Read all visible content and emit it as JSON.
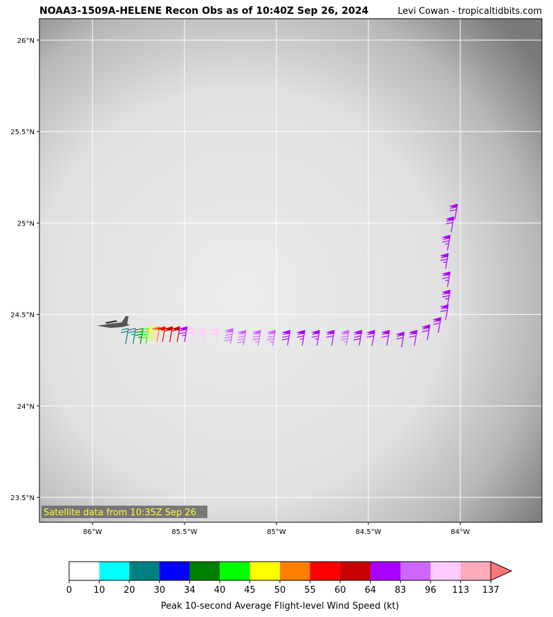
{
  "title": "NOAA3-1509A-HELENE Recon Obs as of 10:40Z Sep 26, 2024",
  "credit": "Levi Cowan - tropicaltidbits.com",
  "map": {
    "xlim": [
      -86.289,
      -83.556
    ],
    "ylim": [
      23.364,
      26.117
    ],
    "xticks": [
      {
        "value": -86,
        "label": "86°W"
      },
      {
        "value": -85.5,
        "label": "85.5°W"
      },
      {
        "value": -85,
        "label": "85°W"
      },
      {
        "value": -84.5,
        "label": "84.5°W"
      },
      {
        "value": -84,
        "label": "84°W"
      }
    ],
    "yticks": [
      {
        "value": 23.5,
        "label": "23.5°N"
      },
      {
        "value": 24,
        "label": "24°N"
      },
      {
        "value": 24.5,
        "label": "24.5°N"
      },
      {
        "value": 25,
        "label": "25°N"
      },
      {
        "value": 25.5,
        "label": "25.5°N"
      },
      {
        "value": 26,
        "label": "26°N"
      }
    ],
    "grid": true,
    "annotation": "Satellite data from 10:35Z Sep 26",
    "observations": [
      {
        "lon": -85.82,
        "lat": 24.34,
        "speed": 22
      },
      {
        "lon": -85.78,
        "lat": 24.34,
        "speed": 28
      },
      {
        "lon": -85.74,
        "lat": 24.34,
        "speed": 36
      },
      {
        "lon": -85.71,
        "lat": 24.34,
        "speed": 42
      },
      {
        "lon": -85.68,
        "lat": 24.35,
        "speed": 47
      },
      {
        "lon": -85.65,
        "lat": 24.35,
        "speed": 53
      },
      {
        "lon": -85.62,
        "lat": 24.35,
        "speed": 58
      },
      {
        "lon": -85.58,
        "lat": 24.35,
        "speed": 62
      },
      {
        "lon": -85.54,
        "lat": 24.35,
        "speed": 60
      },
      {
        "lon": -85.5,
        "lat": 24.35,
        "speed": 75
      },
      {
        "lon": -85.46,
        "lat": 24.35,
        "speed": 100
      },
      {
        "lon": -85.4,
        "lat": 24.34,
        "speed": 105
      },
      {
        "lon": -85.33,
        "lat": 24.34,
        "speed": 100
      },
      {
        "lon": -85.25,
        "lat": 24.34,
        "speed": 90
      },
      {
        "lon": -85.18,
        "lat": 24.33,
        "speed": 90
      },
      {
        "lon": -85.1,
        "lat": 24.33,
        "speed": 88
      },
      {
        "lon": -85.02,
        "lat": 24.33,
        "speed": 85
      },
      {
        "lon": -84.94,
        "lat": 24.33,
        "speed": 80
      },
      {
        "lon": -84.86,
        "lat": 24.33,
        "speed": 78
      },
      {
        "lon": -84.78,
        "lat": 24.33,
        "speed": 75
      },
      {
        "lon": -84.7,
        "lat": 24.33,
        "speed": 72
      },
      {
        "lon": -84.62,
        "lat": 24.33,
        "speed": 88
      },
      {
        "lon": -84.55,
        "lat": 24.33,
        "speed": 80
      },
      {
        "lon": -84.48,
        "lat": 24.33,
        "speed": 74
      },
      {
        "lon": -84.4,
        "lat": 24.33,
        "speed": 72
      },
      {
        "lon": -84.32,
        "lat": 24.32,
        "speed": 70
      },
      {
        "lon": -84.25,
        "lat": 24.33,
        "speed": 70
      },
      {
        "lon": -84.18,
        "lat": 24.36,
        "speed": 70
      },
      {
        "lon": -84.12,
        "lat": 24.4,
        "speed": 72
      },
      {
        "lon": -84.08,
        "lat": 24.47,
        "speed": 74
      },
      {
        "lon": -84.07,
        "lat": 24.55,
        "speed": 75
      },
      {
        "lon": -84.07,
        "lat": 24.65,
        "speed": 76
      },
      {
        "lon": -84.08,
        "lat": 24.75,
        "speed": 76
      },
      {
        "lon": -84.07,
        "lat": 24.85,
        "speed": 75
      },
      {
        "lon": -84.05,
        "lat": 24.95,
        "speed": 72
      },
      {
        "lon": -84.03,
        "lat": 25.02,
        "speed": 70
      }
    ]
  },
  "colorbar": {
    "label": "Peak 10-second Average Flight-level Wind Speed (kt)",
    "bounds": [
      0,
      10,
      20,
      30,
      34,
      40,
      45,
      50,
      55,
      60,
      64,
      83,
      96,
      113,
      137
    ],
    "colors": [
      "#ffffff",
      "#00ffff",
      "#008080",
      "#0000ff",
      "#008000",
      "#00ff00",
      "#ffff00",
      "#ff7f00",
      "#ff0000",
      "#c80000",
      "#aa00ff",
      "#cc66ff",
      "#ffccff",
      "#ffaabb",
      "#ff7777"
    ]
  }
}
